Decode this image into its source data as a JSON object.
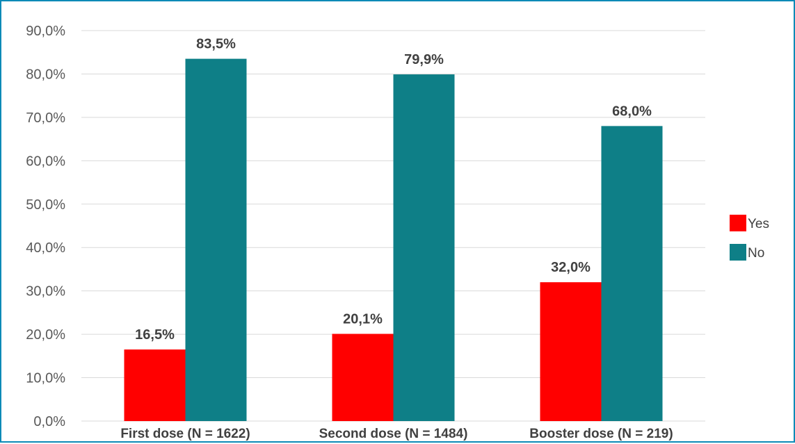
{
  "chart_data": {
    "type": "bar",
    "categories": [
      "First dose (N = 1622)",
      "Second dose (N = 1484)",
      "Booster dose (N = 219)"
    ],
    "series": [
      {
        "name": "Yes",
        "values": [
          16.5,
          20.1,
          32.0
        ],
        "labels": [
          "16,5%",
          "20,1%",
          "32,0%"
        ],
        "color": "#ff0000"
      },
      {
        "name": "No",
        "values": [
          83.5,
          79.9,
          68.0
        ],
        "labels": [
          "83,5%",
          "79,9%",
          "68,0%"
        ],
        "color": "#0e7f87"
      }
    ],
    "yticks": [
      "0,0%",
      "10,0%",
      "20,0%",
      "30,0%",
      "40,0%",
      "50,0%",
      "60,0%",
      "70,0%",
      "80,0%",
      "90,0%"
    ],
    "ylim": [
      0,
      90
    ],
    "grid": true,
    "legend_position": "right",
    "frame_color": "#0c8ab7",
    "grid_color": "#d9d9d9"
  }
}
